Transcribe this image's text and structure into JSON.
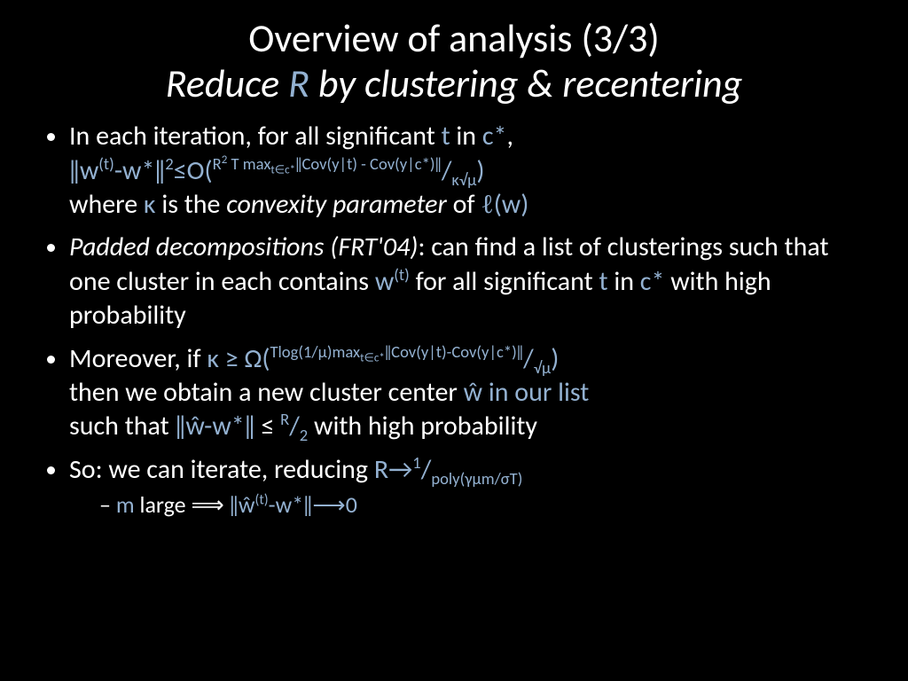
{
  "colors": {
    "background": "#000000",
    "text": "#ffffff",
    "accent": "#93b1d1"
  },
  "title": {
    "line1": "Overview of analysis (3/3)",
    "line2_pre": "Reduce ",
    "line2_R": "R",
    "line2_post": " by clustering & recentering"
  },
  "bullets": {
    "b1": {
      "p1": "In each iteration, for all significant ",
      "t": "t",
      "p2": " in ",
      "cstar": "c*",
      "p3": ",",
      "norm_open": "‖w",
      "sup_t": "(t)",
      "norm_mid": "-w*‖",
      "sq": "2",
      "le": "≤O(",
      "exp": "R",
      "exp2": "2",
      "expT": " T max",
      "expsub": "t∈c*",
      "expcov": "‖Cov(y|t) - Cov(y|c*)‖",
      "slash": "/",
      "denom": "κ√μ",
      "close": ")",
      "where": "where ",
      "kappa": "κ",
      "isthe": " is the ",
      "convex": "convexity parameter",
      "of": " of  ",
      "ell": "ℓ",
      "w": "(w)"
    },
    "b2": {
      "pd": "Padded decompositions (FRT'04)",
      "p1": ": can find a list of clusterings such that one cluster in each contains ",
      "w": "w",
      "sup_t": "(t)",
      "p2": " for all significant ",
      "t": "t",
      "p3": " in ",
      "cstar": "c*",
      "p4": " with high probability"
    },
    "b3": {
      "p1": "Moreover, if ",
      "kappa": "κ",
      "ge": " ≥ Ω(",
      "exp": "Tlog(1/μ)max",
      "expsub": "t∈c*",
      "expcov": "‖Cov(y|t)-Cov(y|c*)‖",
      "slash": "/",
      "denom": "√μ",
      "close": ")",
      "p2": "then we obtain a new cluster center ",
      "what": "ŵ",
      "inour": " in our list",
      "p3": "such that ",
      "norm": "‖ŵ-w*‖",
      "le": " ≤ ",
      "R": "R",
      "slash2": "/",
      "two": "2",
      "p4": " with high probability"
    },
    "b4": {
      "p1": "So: we can iterate, reducing ",
      "R": "R",
      "arrow": "→",
      "one": "1",
      "slash": "/",
      "denom": "poly(γμm/σT)"
    },
    "sub1": {
      "m": "m",
      "p1": " large ",
      "imp": "⟹",
      "norm_open": " ‖ŵ",
      "sup_t": "(t)",
      "norm_mid": "-w*‖",
      "arrow": "⟶",
      "zero": "0"
    }
  }
}
